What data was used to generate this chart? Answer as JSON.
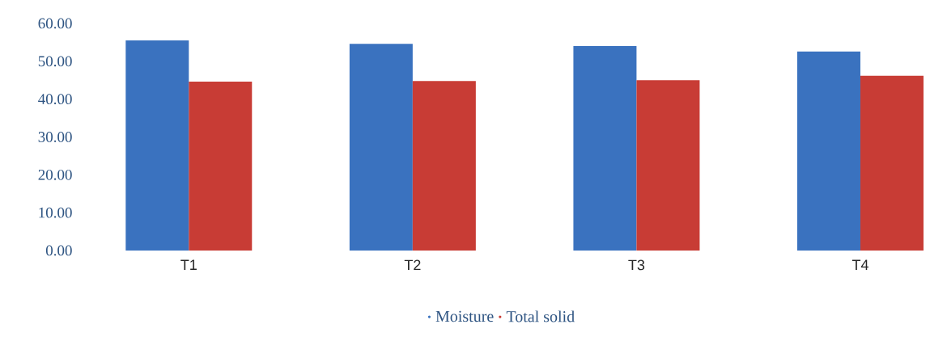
{
  "chart_data": {
    "type": "bar",
    "categories": [
      "T1",
      "T2",
      "T3",
      "T4"
    ],
    "series": [
      {
        "name": "Moisture",
        "color": "#3a72bf",
        "values": [
          55.5,
          54.6,
          54.0,
          52.6
        ]
      },
      {
        "name": "Total solid",
        "color": "#c83c35",
        "values": [
          44.6,
          44.8,
          45.0,
          46.2
        ]
      }
    ],
    "ylim": [
      0,
      60
    ],
    "yticks": [
      {
        "value": 0,
        "label": "0.00"
      },
      {
        "value": 10,
        "label": "10.00"
      },
      {
        "value": 20,
        "label": "20.00"
      },
      {
        "value": 30,
        "label": "30.00"
      },
      {
        "value": 40,
        "label": "40.00"
      },
      {
        "value": 50,
        "label": "50.00"
      },
      {
        "value": 60,
        "label": "60.00"
      }
    ],
    "grid": false,
    "legend": "bottom"
  }
}
